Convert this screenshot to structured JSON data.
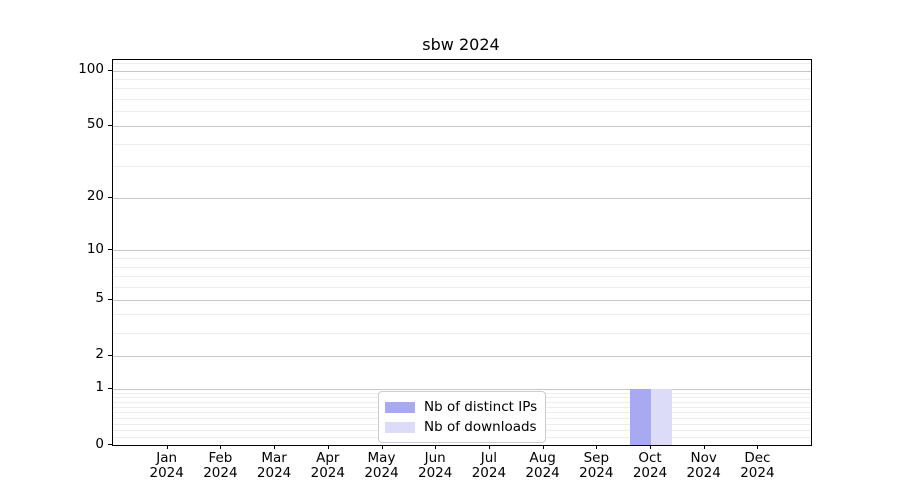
{
  "title": "sbw 2024",
  "chart_data": {
    "type": "bar",
    "title": "sbw 2024",
    "y_scale": "log1p",
    "x_categories": [
      {
        "month": "Jan",
        "year": "2024"
      },
      {
        "month": "Feb",
        "year": "2024"
      },
      {
        "month": "Mar",
        "year": "2024"
      },
      {
        "month": "Apr",
        "year": "2024"
      },
      {
        "month": "May",
        "year": "2024"
      },
      {
        "month": "Jun",
        "year": "2024"
      },
      {
        "month": "Jul",
        "year": "2024"
      },
      {
        "month": "Aug",
        "year": "2024"
      },
      {
        "month": "Sep",
        "year": "2024"
      },
      {
        "month": "Oct",
        "year": "2024"
      },
      {
        "month": "Nov",
        "year": "2024"
      },
      {
        "month": "Dec",
        "year": "2024"
      }
    ],
    "series": [
      {
        "name": "Nb of distinct IPs",
        "color": "#a9a9f2",
        "values": [
          0,
          0,
          0,
          0,
          0,
          0,
          0,
          0,
          0,
          1,
          0,
          0
        ]
      },
      {
        "name": "Nb of downloads",
        "color": "#dcdcf8",
        "values": [
          0,
          0,
          0,
          0,
          0,
          0,
          0,
          0,
          0,
          1,
          0,
          0
        ]
      }
    ],
    "y_ticks": [
      0,
      1,
      2,
      5,
      10,
      20,
      50,
      100
    ],
    "y_minor_ticks": [
      0.1,
      0.2,
      0.3,
      0.4,
      0.5,
      0.6,
      0.7,
      0.8,
      0.9,
      3,
      4,
      6,
      7,
      8,
      9,
      30,
      40,
      60,
      70,
      80,
      90,
      110
    ],
    "ylim": [
      0,
      114
    ],
    "grid": "horizontal",
    "grid_color_major": "#c6c6c6",
    "grid_color_minor": "#ededed",
    "legend_position": "bottom-center"
  }
}
